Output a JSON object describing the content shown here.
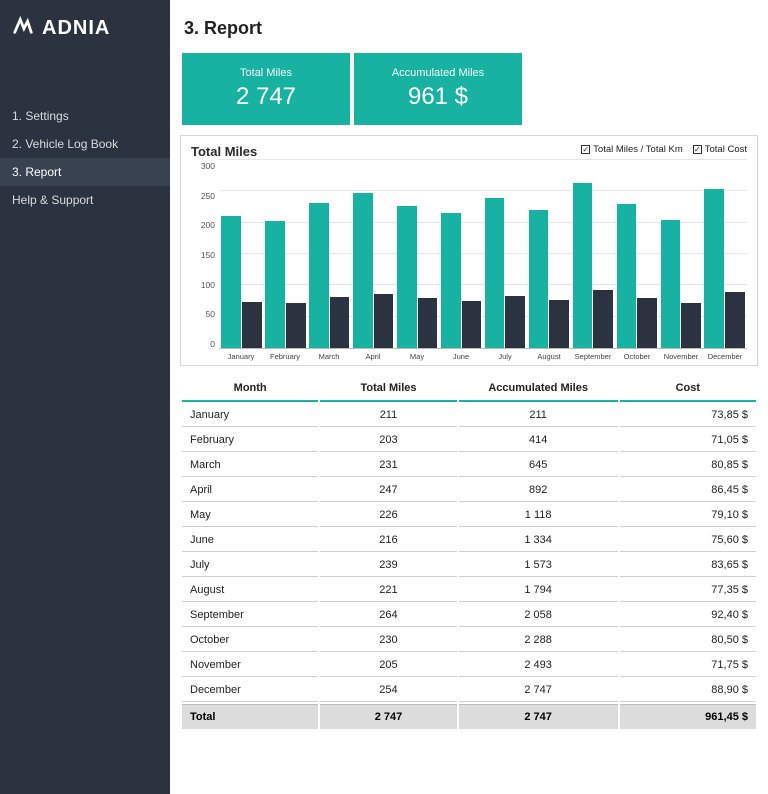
{
  "brand": "ADNIA",
  "sidebar": {
    "items": [
      {
        "label": "1. Settings",
        "active": false
      },
      {
        "label": "2. Vehicle Log Book",
        "active": false
      },
      {
        "label": "3. Report",
        "active": true
      },
      {
        "label": "Help & Support",
        "active": false
      }
    ]
  },
  "page": {
    "title": "3. Report"
  },
  "kpi": [
    {
      "label": "Total Miles",
      "value": "2 747",
      "bg": "#17b2a1"
    },
    {
      "label": "Accumulated Miles",
      "value": "961 $",
      "bg": "#17b2a1"
    }
  ],
  "chart": {
    "title": "Total Miles",
    "type": "bar",
    "series": [
      {
        "name": "Total Miles / Total Km",
        "color": "#17b2a1",
        "checked": true
      },
      {
        "name": "Total Cost",
        "color": "#2b3340",
        "checked": true
      }
    ],
    "categories": [
      "January",
      "February",
      "March",
      "April",
      "May",
      "June",
      "July",
      "August",
      "September",
      "October",
      "November",
      "December"
    ],
    "values_miles": [
      211,
      203,
      231,
      247,
      226,
      216,
      239,
      221,
      264,
      230,
      205,
      254
    ],
    "values_cost": [
      73.85,
      71.05,
      80.85,
      86.45,
      79.1,
      75.6,
      83.65,
      77.35,
      92.4,
      80.5,
      71.75,
      88.9
    ],
    "ylim": [
      0,
      300
    ],
    "ytick_step": 50,
    "yticks": [
      "300",
      "250",
      "200",
      "150",
      "100",
      "50",
      "0"
    ],
    "grid_color": "#e6e6e6",
    "axis_color": "#bbbbbb",
    "label_fontsize": 8
  },
  "table": {
    "columns": [
      "Month",
      "Total Miles",
      "Accumulated Miles",
      "Cost"
    ],
    "rows": [
      [
        "January",
        "211",
        "211",
        "73,85 $"
      ],
      [
        "February",
        "203",
        "414",
        "71,05 $"
      ],
      [
        "March",
        "231",
        "645",
        "80,85 $"
      ],
      [
        "April",
        "247",
        "892",
        "86,45 $"
      ],
      [
        "May",
        "226",
        "1 118",
        "79,10 $"
      ],
      [
        "June",
        "216",
        "1 334",
        "75,60 $"
      ],
      [
        "July",
        "239",
        "1 573",
        "83,65 $"
      ],
      [
        "August",
        "221",
        "1 794",
        "77,35 $"
      ],
      [
        "September",
        "264",
        "2 058",
        "92,40 $"
      ],
      [
        "October",
        "230",
        "2 288",
        "80,50 $"
      ],
      [
        "November",
        "205",
        "2 493",
        "71,75 $"
      ],
      [
        "December",
        "254",
        "2 747",
        "88,90 $"
      ]
    ],
    "footer": [
      "Total",
      "2 747",
      "2 747",
      "961,45 $"
    ],
    "accent_color": "#17b2a1",
    "row_border_color": "#cfcfcf",
    "footer_bg": "#dcdcdc"
  }
}
